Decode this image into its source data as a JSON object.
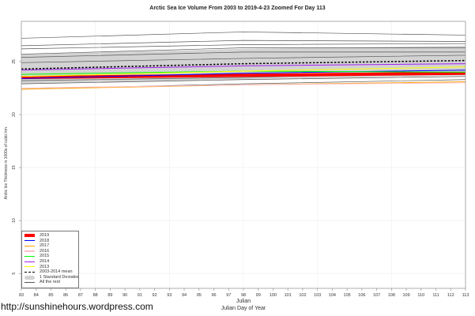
{
  "chart_data": {
    "type": "line",
    "title": "Arctic Sea Ice Volume From 2003 to 2019-4-23 Zoomed For Day 113",
    "xlabel": "Julian",
    "xlabel2": "Julian Day of Year",
    "ylabel": "Arctic Ice Thickness in 1000s of cubic km.",
    "xlim": [
      83,
      113
    ],
    "ylim": [
      3.6,
      28.8
    ],
    "xticks": [
      83,
      84,
      85,
      86,
      87,
      88,
      89,
      90,
      91,
      92,
      93,
      94,
      95,
      96,
      97,
      98,
      99,
      100,
      101,
      102,
      103,
      104,
      105,
      106,
      107,
      108,
      109,
      110,
      111,
      112,
      113
    ],
    "yticks": [
      5,
      10,
      15,
      20,
      25
    ],
    "grid": true,
    "legend_position": "bottom-left",
    "x": [
      83,
      98,
      113
    ],
    "series": [
      {
        "name": "2019",
        "color": "#ff0000",
        "width": 4,
        "values": [
          23.5,
          23.7,
          23.9
        ]
      },
      {
        "name": "2018",
        "color": "#0000ff",
        "width": 1,
        "values": [
          23.4,
          23.9,
          24.2
        ]
      },
      {
        "name": "2017",
        "color": "#ffa500",
        "width": 1,
        "values": [
          22.4,
          22.8,
          23.1
        ]
      },
      {
        "name": "2016",
        "color": "#ffc0cb",
        "width": 1,
        "values": [
          22.5,
          22.8,
          23.0
        ]
      },
      {
        "name": "2015",
        "color": "#00ff00",
        "width": 1,
        "values": [
          23.8,
          24.1,
          24.0
        ]
      },
      {
        "name": "2014",
        "color": "#a020f0",
        "width": 1,
        "values": [
          24.2,
          24.6,
          24.8
        ]
      },
      {
        "name": "2013",
        "color": "#ffff00",
        "width": 1,
        "values": [
          23.6,
          24.1,
          24.5
        ]
      },
      {
        "name": "2003-2014 mean",
        "color": "#000000",
        "width": 1.5,
        "dashed": true,
        "values": [
          24.3,
          24.8,
          25.1
        ]
      }
    ],
    "sd_band": {
      "name": "1 Standard Deviation",
      "color": "#d3d3d3",
      "lower": [
        22.9,
        23.3,
        23.7
      ],
      "upper": [
        25.7,
        26.2,
        26.5
      ]
    },
    "rest": {
      "name": "All the rest",
      "color": "#555555",
      "lines": [
        [
          27.2,
          27.8,
          27.5
        ],
        [
          26.5,
          27.0,
          26.9
        ],
        [
          26.2,
          26.6,
          26.7
        ],
        [
          25.7,
          26.3,
          26.3
        ],
        [
          25.4,
          25.9,
          25.9
        ],
        [
          24.9,
          25.3,
          25.6
        ],
        [
          22.9,
          23.3,
          23.6
        ],
        [
          22.4,
          22.9,
          23.3
        ],
        [
          23.2,
          23.5,
          24.0
        ]
      ]
    }
  },
  "footer": {
    "url": "http://sunshinehours.wordpress.com"
  }
}
